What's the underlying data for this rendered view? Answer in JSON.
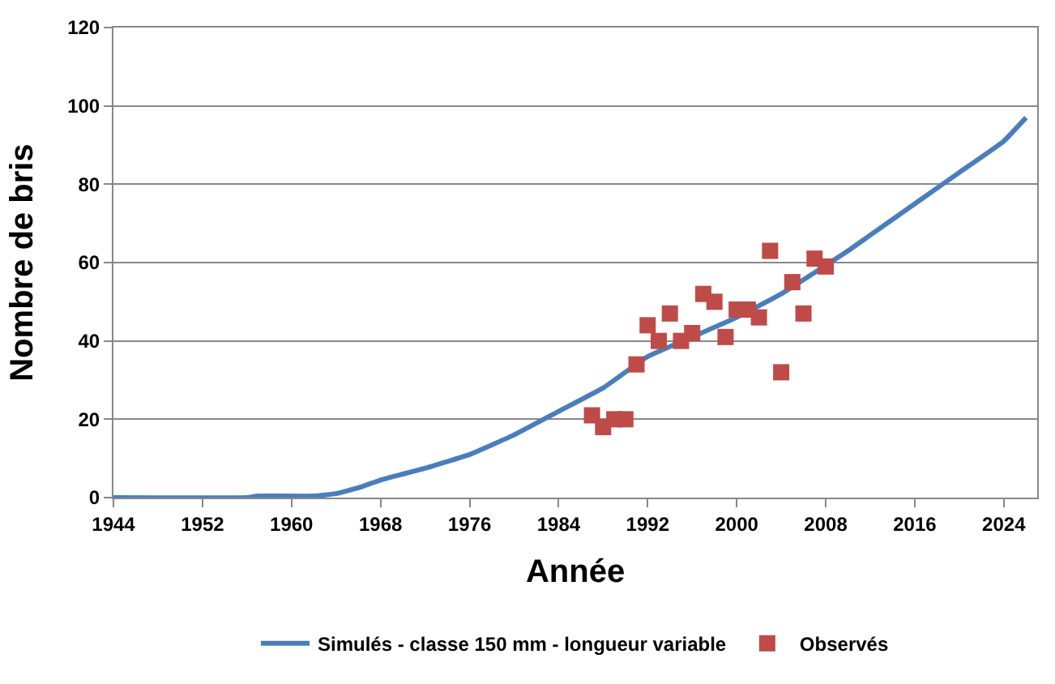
{
  "chart_data": {
    "type": "line",
    "xlabel": "Année",
    "ylabel": "Nombre de bris",
    "xlim": [
      1944,
      2027
    ],
    "xticks": [
      1944,
      1952,
      1960,
      1968,
      1976,
      1984,
      1992,
      2000,
      2008,
      2016,
      2024
    ],
    "ylim": [
      0,
      120
    ],
    "yticks": [
      0,
      20,
      40,
      60,
      80,
      100,
      120
    ],
    "grid": "y",
    "legend": "bottom",
    "series": [
      {
        "name": "Simulés - classe 150 mm - longueur variable",
        "color": "#4a7ebb",
        "marker": "none",
        "x": [
          1944,
          1956,
          1957,
          1962,
          1964,
          1966,
          1968,
          1970,
          1972,
          1976,
          1980,
          1984,
          1988,
          1992,
          1996,
          2000,
          2004,
          2010,
          2012,
          2016,
          2020,
          2024,
          2026
        ],
        "values": [
          0,
          0,
          0.4,
          0.4,
          1,
          2.5,
          4.5,
          6,
          7.5,
          11,
          16,
          22,
          28,
          36,
          41,
          46,
          52,
          63,
          67,
          75,
          83,
          91,
          97
        ]
      },
      {
        "name": "Observés",
        "type": "scatter",
        "color": "#be4b48",
        "marker": "square",
        "x": [
          1987,
          1988,
          1989,
          1990,
          1991,
          1992,
          1993,
          1994,
          1995,
          1996,
          1997,
          1998,
          1999,
          2000,
          2001,
          2002,
          2003,
          2004,
          2005,
          2006,
          2007,
          2008
        ],
        "values": [
          21,
          18,
          20,
          20,
          34,
          44,
          40,
          47,
          40,
          42,
          52,
          50,
          41,
          48,
          48,
          46,
          63,
          32,
          55,
          47,
          61,
          59
        ]
      }
    ]
  }
}
